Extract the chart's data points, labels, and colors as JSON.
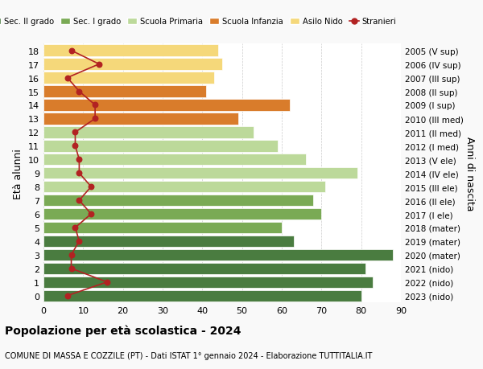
{
  "ages": [
    18,
    17,
    16,
    15,
    14,
    13,
    12,
    11,
    10,
    9,
    8,
    7,
    6,
    5,
    4,
    3,
    2,
    1,
    0
  ],
  "right_labels": [
    "2005 (V sup)",
    "2006 (IV sup)",
    "2007 (III sup)",
    "2008 (II sup)",
    "2009 (I sup)",
    "2010 (III med)",
    "2011 (II med)",
    "2012 (I med)",
    "2013 (V ele)",
    "2014 (IV ele)",
    "2015 (III ele)",
    "2016 (II ele)",
    "2017 (I ele)",
    "2018 (mater)",
    "2019 (mater)",
    "2020 (mater)",
    "2021 (nido)",
    "2022 (nido)",
    "2023 (nido)"
  ],
  "bar_values": [
    80,
    83,
    81,
    88,
    63,
    60,
    70,
    68,
    71,
    79,
    66,
    59,
    53,
    49,
    62,
    41,
    43,
    45,
    44
  ],
  "bar_colors": [
    "#4a7c40",
    "#4a7c40",
    "#4a7c40",
    "#4a7c40",
    "#4a7c40",
    "#7aaa55",
    "#7aaa55",
    "#7aaa55",
    "#bcd99a",
    "#bcd99a",
    "#bcd99a",
    "#bcd99a",
    "#bcd99a",
    "#d97c2b",
    "#d97c2b",
    "#d97c2b",
    "#f5d87a",
    "#f5d87a",
    "#f5d87a"
  ],
  "stranieri_values": [
    6,
    16,
    7,
    7,
    9,
    8,
    12,
    9,
    12,
    9,
    9,
    8,
    8,
    13,
    13,
    9,
    6,
    14,
    7
  ],
  "stranieri_color": "#b22222",
  "legend_labels": [
    "Sec. II grado",
    "Sec. I grado",
    "Scuola Primaria",
    "Scuola Infanzia",
    "Asilo Nido",
    "Stranieri"
  ],
  "legend_colors": [
    "#4a7c40",
    "#7aaa55",
    "#bcd99a",
    "#d97c2b",
    "#f5d87a",
    "#b22222"
  ],
  "title": "Popolazione per età scolastica - 2024",
  "subtitle": "COMUNE DI MASSA E COZZILE (PT) - Dati ISTAT 1° gennaio 2024 - Elaborazione TUTTITALIA.IT",
  "ylabel": "Età alunni",
  "right_ylabel": "Anni di nascita",
  "xlim": [
    0,
    90
  ],
  "xticks": [
    0,
    10,
    20,
    30,
    40,
    50,
    60,
    70,
    80,
    90
  ],
  "background_color": "#f9f9f9",
  "bar_background": "#ffffff"
}
